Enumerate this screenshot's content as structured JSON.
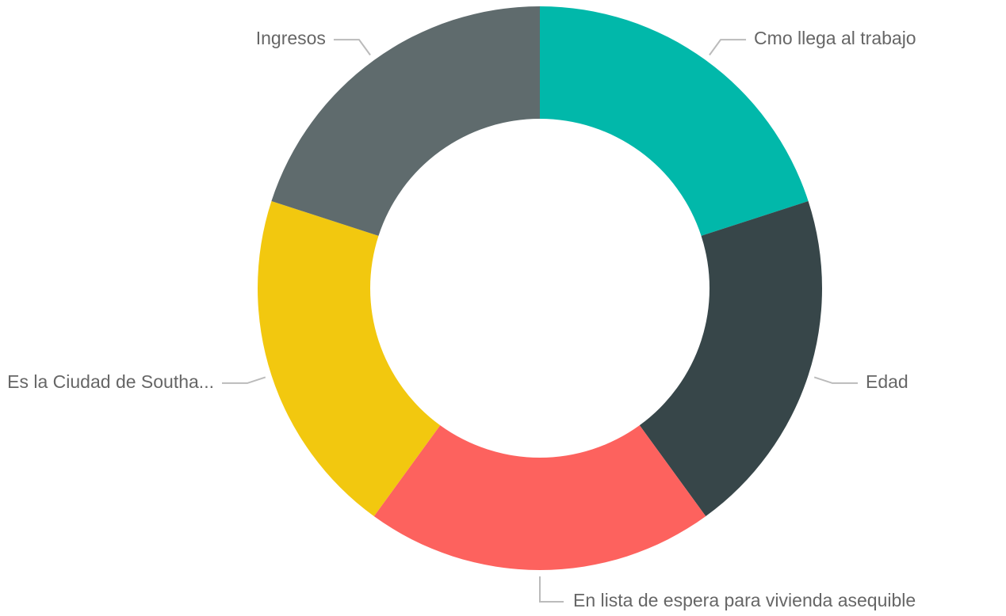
{
  "chart_data": {
    "type": "donut",
    "categories": [
      "Cmo llega al trabajo",
      "Edad",
      "En lista de espera para vivienda asequible",
      "Es la Ciudad de Southa...",
      "Ingresos"
    ],
    "values": [
      20,
      20,
      20,
      20,
      20
    ],
    "colors": [
      "#01b8aa",
      "#374649",
      "#fd625e",
      "#f2c80f",
      "#5f6b6d"
    ]
  }
}
